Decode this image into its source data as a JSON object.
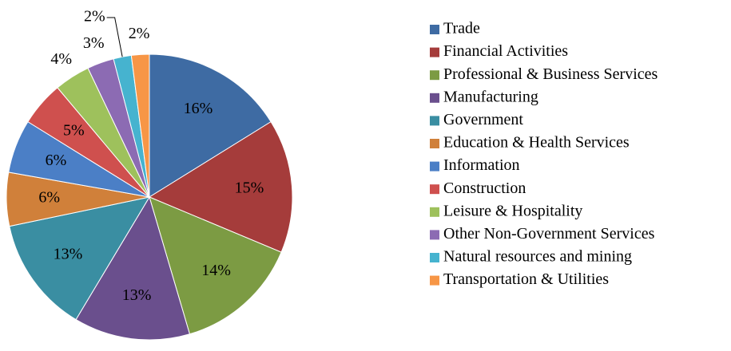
{
  "chart_data": {
    "type": "pie",
    "categories": [
      "Trade",
      "Financial Activities",
      "Professional & Business Services",
      "Manufacturing",
      "Government",
      "Education & Health Services",
      "Information",
      "Construction",
      "Leisure & Hospitality",
      "Other Non-Government Services",
      "Natural resources and mining",
      "Transportation & Utilities"
    ],
    "values": [
      16,
      15,
      14,
      13,
      13,
      6,
      6,
      5,
      4,
      3,
      2,
      2
    ],
    "value_labels": [
      "16%",
      "15%",
      "14%",
      "13%",
      "13%",
      "6%",
      "6%",
      "5%",
      "4%",
      "3%",
      "2%",
      "2%"
    ],
    "colors": [
      "#3e6ba3",
      "#a53c3b",
      "#7c9b43",
      "#6a4f8d",
      "#3a8ea2",
      "#d0803a",
      "#4b7fc6",
      "#cf504e",
      "#9ec15c",
      "#8c6bb3",
      "#46b3cf",
      "#f79646"
    ],
    "legend": "right"
  }
}
